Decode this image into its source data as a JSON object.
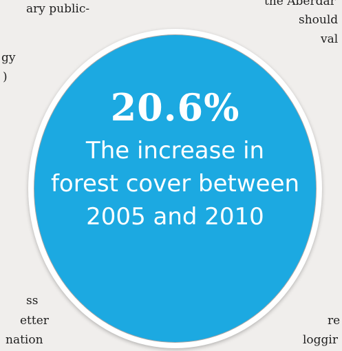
{
  "body_text_fragments": {
    "top_left_1": "ary public-",
    "top_left_2": "gy",
    "top_left_3": ")",
    "top_right_1": "the Aberdar",
    "top_right_2": "should",
    "top_right_3": "val",
    "bottom_left_1": "ss",
    "bottom_left_2": "etter",
    "bottom_left_3": "nation",
    "bottom_right_1": "re",
    "bottom_right_2": "loggir"
  },
  "badge": {
    "value": "20.6%",
    "caption_lines": [
      "The increase in",
      "forest cover between",
      "2005 and 2010"
    ],
    "fill_color": "#1ca9e1",
    "ring_color": "#ffffff"
  }
}
